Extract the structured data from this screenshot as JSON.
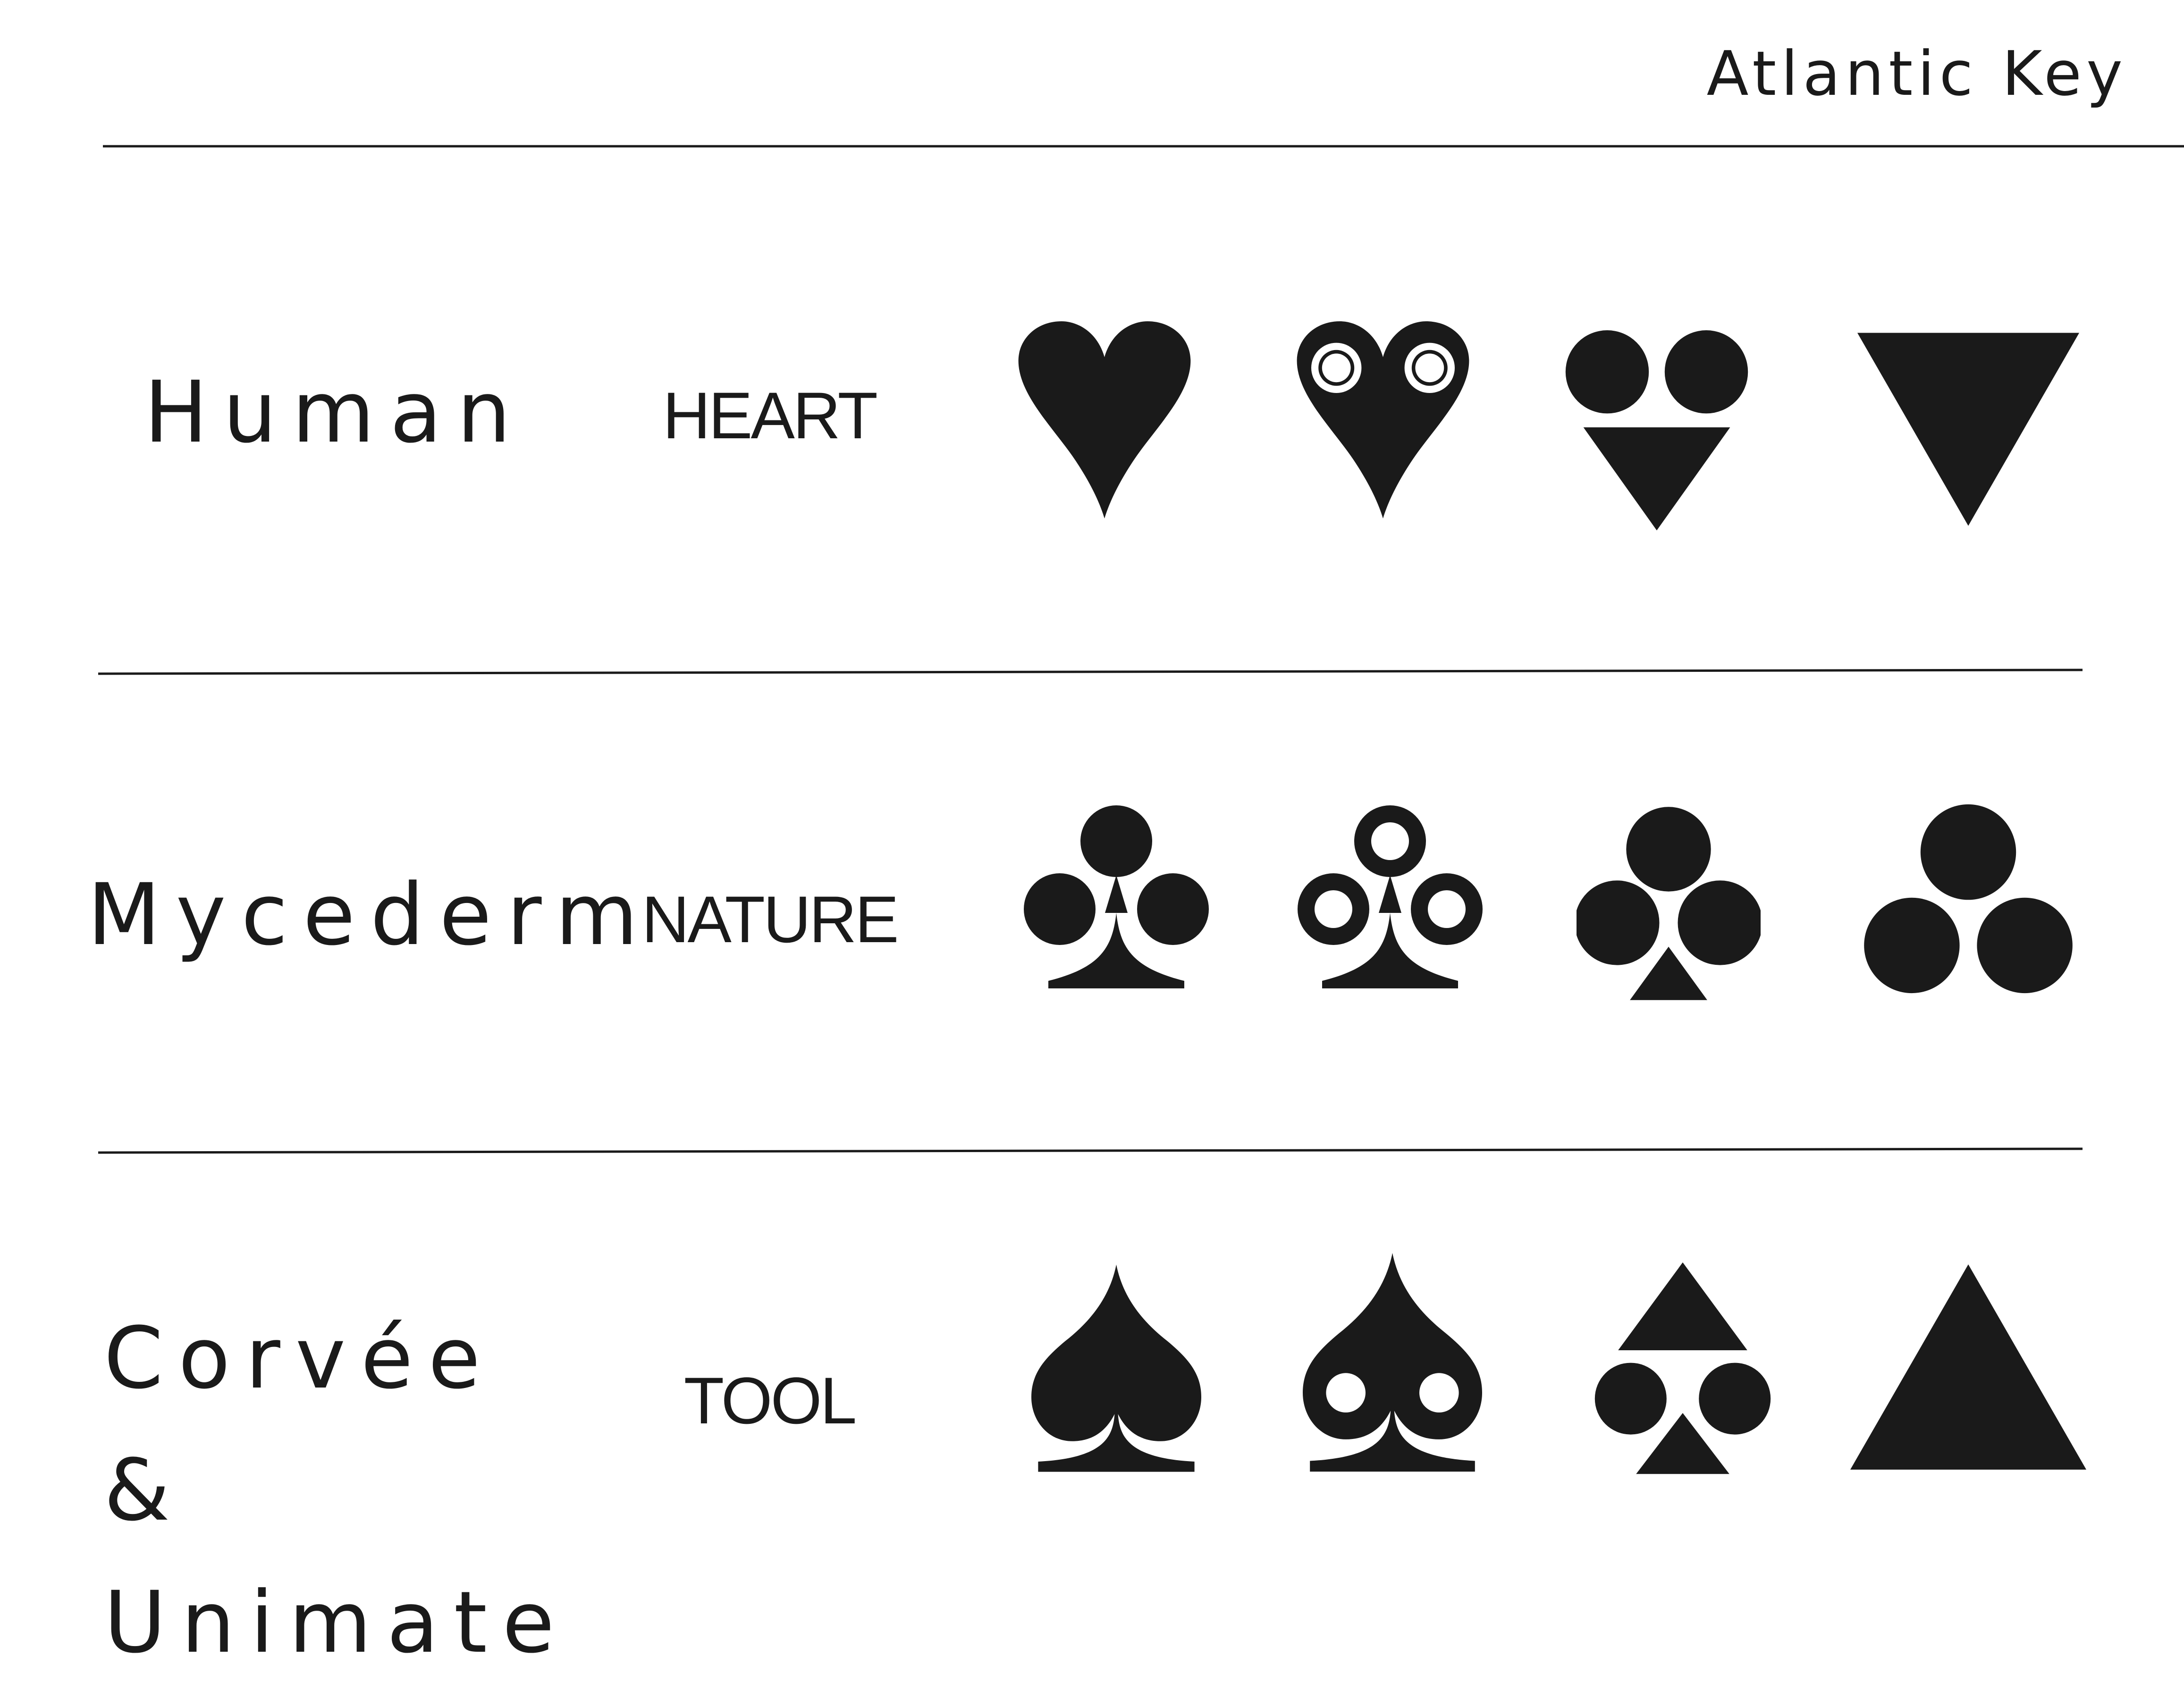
{
  "header": {
    "title": "Atlantic Key"
  },
  "rows": [
    {
      "faction": "Human",
      "category": "HEART",
      "symbols": [
        "heart-suit-icon",
        "heart-with-circles-icon",
        "two-circles-over-triangle-icon",
        "downward-triangle-icon"
      ]
    },
    {
      "faction": "Mycederm",
      "category": "NATURE",
      "symbols": [
        "club-suit-icon",
        "club-with-circles-icon",
        "three-circles-over-triangle-icon",
        "three-circles-icon"
      ]
    },
    {
      "faction": "Corvée & Unimate",
      "category": "TOOL",
      "symbols": [
        "spade-suit-icon",
        "spade-with-circles-icon",
        "triangles-and-circles-icon",
        "upward-triangle-icon"
      ]
    }
  ],
  "colors": {
    "ink": "#1a1a1a",
    "background": "#ffffff"
  }
}
